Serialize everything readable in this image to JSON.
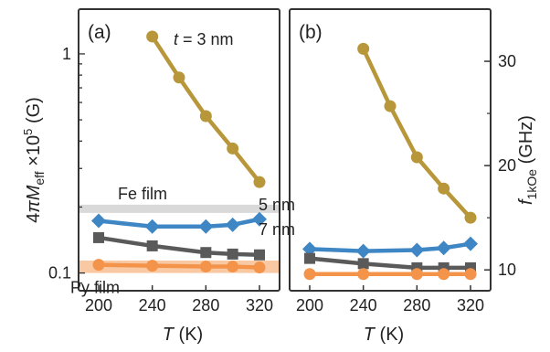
{
  "chart_data": [
    {
      "type": "line",
      "panel_label": "(a)",
      "xlabel": "T (K)",
      "ylabel": "4πM_eff ×10^5 (G)",
      "yscale": "log",
      "xlim": [
        185,
        335
      ],
      "ylim": [
        0.083,
        1.6
      ],
      "xticks": [
        200,
        240,
        280,
        320
      ],
      "yticks": [
        {
          "value": 0.1,
          "label": "0.1"
        },
        {
          "value": 1,
          "label": "1"
        }
      ],
      "series": [
        {
          "name": "t = 3 nm",
          "color": "#b8963a",
          "marker": "circle",
          "x": [
            240,
            260,
            280,
            300,
            320
          ],
          "y": [
            1.2,
            0.78,
            0.52,
            0.37,
            0.26
          ]
        },
        {
          "name": "5 nm",
          "color": "#3f86c4",
          "marker": "diamond",
          "x": [
            200,
            240,
            280,
            300,
            320
          ],
          "y": [
            0.173,
            0.163,
            0.163,
            0.166,
            0.176
          ]
        },
        {
          "name": "7 nm",
          "color": "#5a5a5a",
          "marker": "square",
          "x": [
            200,
            240,
            280,
            300,
            320
          ],
          "y": [
            0.145,
            0.133,
            0.124,
            0.122,
            0.121
          ]
        },
        {
          "name": "",
          "color": "#f4944a",
          "marker": "circle",
          "x": [
            200,
            240,
            280,
            300,
            320
          ],
          "y": [
            0.109,
            0.108,
            0.107,
            0.107,
            0.106
          ]
        }
      ],
      "reference_bands": [
        {
          "label": "Fe film",
          "y_low": 0.188,
          "y_high": 0.205,
          "color": "#d9d9d9"
        },
        {
          "label": "Py film",
          "y_low": 0.1,
          "y_high": 0.114,
          "color": "#f9c9a3"
        }
      ],
      "annotations": {
        "t3": "t = 3 nm",
        "t5": "5 nm",
        "t7": "7 nm"
      }
    },
    {
      "type": "line",
      "panel_label": "(b)",
      "xlabel": "T (K)",
      "ylabel": "f_1kOe (GHz)",
      "ylabel_side": "right",
      "xlim": [
        185,
        335
      ],
      "ylim": [
        8,
        35
      ],
      "xticks": [
        200,
        240,
        280,
        320
      ],
      "yticks": [
        10,
        20,
        30
      ],
      "series": [
        {
          "name": "t = 3 nm",
          "color": "#b8963a",
          "marker": "circle",
          "x": [
            240,
            260,
            280,
            300,
            320
          ],
          "y": [
            31.2,
            25.7,
            20.8,
            17.8,
            15.0
          ]
        },
        {
          "name": "5 nm",
          "color": "#3f86c4",
          "marker": "diamond",
          "x": [
            200,
            240,
            280,
            300,
            320
          ],
          "y": [
            12.0,
            11.8,
            11.9,
            12.1,
            12.5
          ]
        },
        {
          "name": "7 nm",
          "color": "#5a5a5a",
          "marker": "square",
          "x": [
            200,
            240,
            280,
            300,
            320
          ],
          "y": [
            11.1,
            10.6,
            10.2,
            10.2,
            10.2
          ]
        },
        {
          "name": "",
          "color": "#f4944a",
          "marker": "circle",
          "x": [
            200,
            240,
            280,
            300,
            320
          ],
          "y": [
            9.6,
            9.6,
            9.6,
            9.6,
            9.6
          ]
        }
      ]
    }
  ]
}
